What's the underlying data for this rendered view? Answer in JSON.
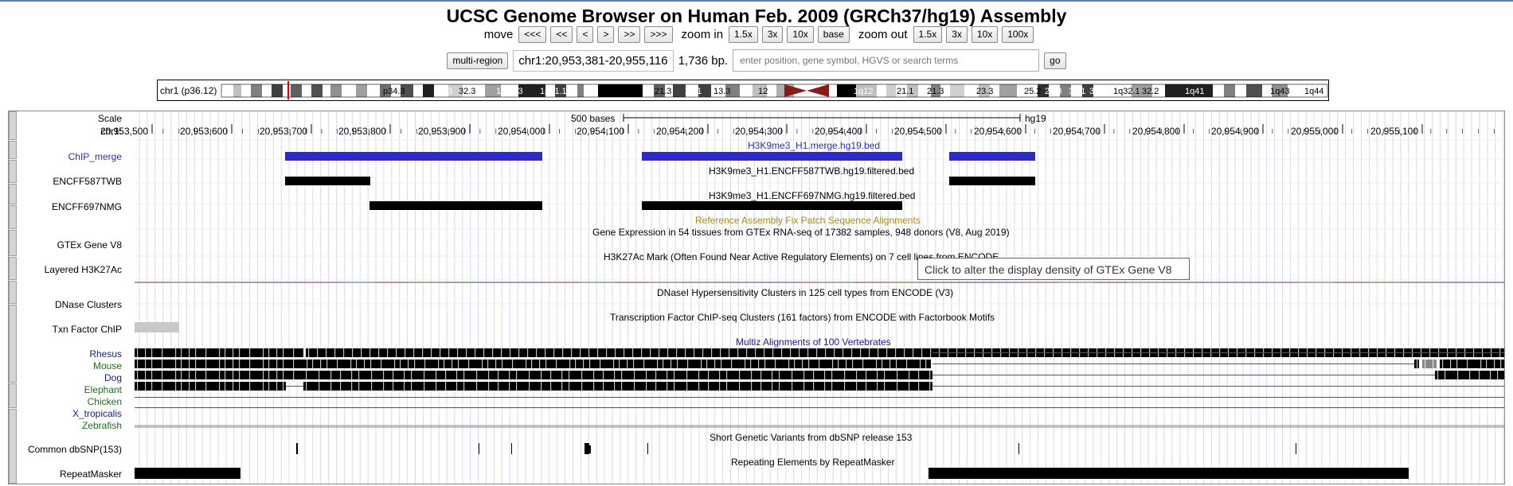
{
  "title": "UCSC Genome Browser on Human Feb. 2009 (GRCh37/hg19) Assembly",
  "nav": {
    "move_label": "move",
    "move_buttons": [
      "<<<",
      "<<",
      "<",
      ">",
      ">>",
      ">>>"
    ],
    "zoom_in_label": "zoom in",
    "zoom_in_buttons": [
      "1.5x",
      "3x",
      "10x",
      "base"
    ],
    "zoom_out_label": "zoom out",
    "zoom_out_buttons": [
      "1.5x",
      "3x",
      "10x",
      "100x"
    ]
  },
  "position": {
    "multi_region_label": "multi-region",
    "range": "chr1:20,953,381-20,955,116",
    "size": "1,736 bp.",
    "search_placeholder": "enter position, gene symbol, HGVS or search terms",
    "go_label": "go"
  },
  "ideogram": {
    "chrom_label": "chr1 (p36.12)",
    "bands": [
      "p34.3",
      "p33",
      "32.3",
      "1p31.3",
      "1p31.1",
      "21.3",
      "21.1",
      "13.3",
      "12",
      "1q12",
      "21.1",
      "21.3",
      "23.3",
      "25.2",
      "25.3",
      "31.1",
      "31.3",
      "1q32.1",
      "32.2",
      "1q41",
      "1q43",
      "1q44"
    ]
  },
  "ruler": {
    "scale_label": "Scale",
    "chrom_label": "chr1:",
    "scale_text": "500 bases",
    "assembly": "hg19",
    "ticks": [
      "20,953,500",
      "20,953,600",
      "20,953,700",
      "20,953,800",
      "20,953,900",
      "20,954,000",
      "20,954,100",
      "20,954,200",
      "20,954,300",
      "20,954,400",
      "20,954,500",
      "20,954,600",
      "20,954,700",
      "20,954,800",
      "20,954,900",
      "20,955,000",
      "20,955,100"
    ]
  },
  "tracks": {
    "chip_merge": {
      "label": "ChIP_merge",
      "center": "H3K9me3_H1.merge.hg19.bed"
    },
    "encff587": {
      "label": "ENCFF587TWB",
      "center": "H3K9me3_H1.ENCFF587TWB.hg19.filtered.bed"
    },
    "encff697": {
      "label": "ENCFF697NMG",
      "center": "H3K9me3_H1.ENCFF697NMG.hg19.filtered.bed"
    },
    "fix_patch": {
      "center": "Reference Assembly Fix Patch Sequence Alignments"
    },
    "gtex": {
      "label": "GTEx Gene V8",
      "center": "Gene Expression in 54 tissues from GTEx RNA-seq of 17382 samples, 948 donors (V8, Aug 2019)"
    },
    "h3k27ac": {
      "label": "Layered H3K27Ac",
      "center": "H3K27Ac Mark (Often Found Near Active Regulatory Elements) on 7 cell lines from ENCODE"
    },
    "dnase": {
      "label": "DNase Clusters",
      "center": "DNaseI Hypersensitivity Clusters in 125 cell types from ENCODE (V3)"
    },
    "txn": {
      "label": "Txn Factor ChIP",
      "center": "Transcription Factor ChIP-seq Clusters (161 factors) from ENCODE with Factorbook Motifs"
    },
    "multiz": {
      "center": "Multiz Alignments of 100 Vertebrates",
      "species": [
        "Rhesus",
        "Mouse",
        "Dog",
        "Elephant",
        "Chicken",
        "X_tropicalis",
        "Zebrafish"
      ]
    },
    "dbsnp": {
      "label": "Common dbSNP(153)",
      "center": "Short Genetic Variants from dbSNP release 153"
    },
    "repeatmasker": {
      "label": "RepeatMasker",
      "center": "Repeating Elements by RepeatMasker"
    }
  },
  "tooltip": "Click to alter the display density of GTEx Gene V8",
  "colors": {
    "chip_merge": "#2b2bcc",
    "bed_black": "#000000",
    "fix_patch_text": "#b8860b",
    "multiz_text": "#1a1a8c",
    "species_blue": "#1a1a8c",
    "species_green": "#1d6f1d",
    "txn_gray": "#c8c8c8"
  }
}
